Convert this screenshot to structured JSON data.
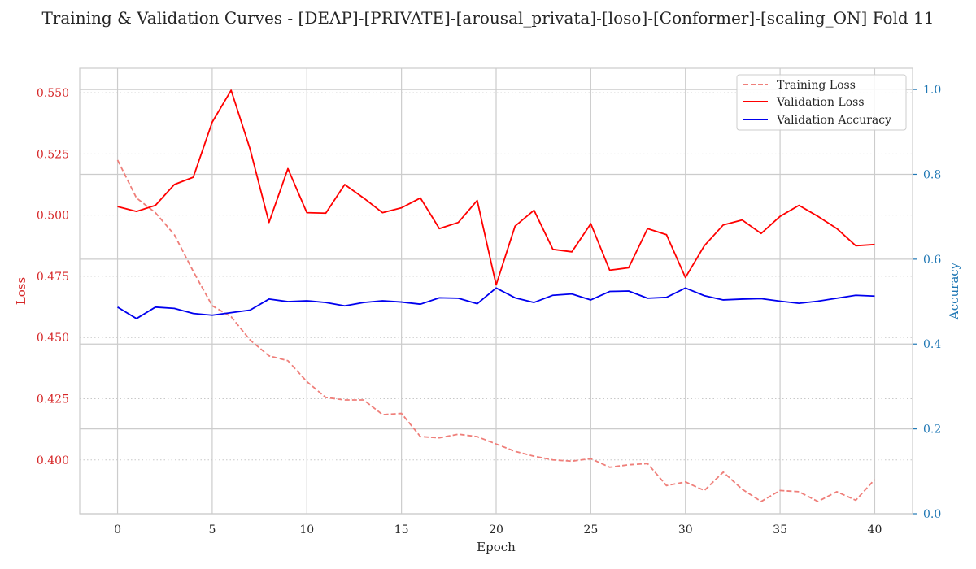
{
  "title": "Training & Validation Curves - [DEAP]-[PRIVATE]-[arousal_privata]-[loso]-[Conformer]-[scaling_ON] Fold 11",
  "colors": {
    "training_loss": "#ef7f7a",
    "validation_loss": "#ff0000",
    "validation_accuracy": "#0000ee",
    "loss_axis": "#d62728",
    "accuracy_axis": "#1f77b4"
  },
  "chart_data": {
    "type": "line",
    "title": "Training & Validation Curves - [DEAP]-[PRIVATE]-[arousal_privata]-[loso]-[Conformer]-[scaling_ON] Fold 11",
    "xlabel": "Epoch",
    "ylabel_left": "Loss",
    "ylabel_right": "Accuracy",
    "xlim": [
      -2,
      42
    ],
    "ylim_left": [
      0.378,
      0.56
    ],
    "ylim_right": [
      0.0,
      1.05
    ],
    "xticks": [
      0,
      5,
      10,
      15,
      20,
      25,
      30,
      35,
      40
    ],
    "yticks_left": [
      0.4,
      0.425,
      0.45,
      0.475,
      0.5,
      0.525,
      0.55
    ],
    "yticks_left_labels": [
      "0.400",
      "0.425",
      "0.450",
      "0.475",
      "0.500",
      "0.525",
      "0.550"
    ],
    "yticks_right": [
      0.0,
      0.2,
      0.4,
      0.6,
      0.8,
      1.0
    ],
    "yticks_right_labels": [
      "0.0",
      "0.2",
      "0.4",
      "0.6",
      "0.8",
      "1.0"
    ],
    "grid": true,
    "legend_position": "top-right",
    "x": [
      0,
      1,
      2,
      3,
      4,
      5,
      6,
      7,
      8,
      9,
      10,
      11,
      12,
      13,
      14,
      15,
      16,
      17,
      18,
      19,
      20,
      21,
      22,
      23,
      24,
      25,
      26,
      27,
      28,
      29,
      30,
      31,
      32,
      33,
      34,
      35,
      36,
      37,
      38,
      39,
      40
    ],
    "series": [
      {
        "name": "Training Loss",
        "axis": "left",
        "style": "dashed",
        "color": "#ef7f7a",
        "values": [
          0.5225,
          0.507,
          0.501,
          0.492,
          0.477,
          0.463,
          0.4585,
          0.449,
          0.4425,
          0.4405,
          0.432,
          0.4255,
          0.4245,
          0.4245,
          0.4185,
          0.419,
          0.4095,
          0.409,
          0.4105,
          0.4095,
          0.4065,
          0.4035,
          0.4015,
          0.4,
          0.3995,
          0.4005,
          0.397,
          0.398,
          0.3985,
          0.3895,
          0.391,
          0.3875,
          0.395,
          0.388,
          0.383,
          0.3875,
          0.387,
          0.383,
          0.387,
          0.3835,
          0.392
        ]
      },
      {
        "name": "Validation Loss",
        "axis": "left",
        "style": "solid",
        "color": "#ff0000",
        "values": [
          0.5035,
          0.5015,
          0.504,
          0.5125,
          0.5155,
          0.538,
          0.551,
          0.527,
          0.497,
          0.519,
          0.501,
          0.5008,
          0.5125,
          0.507,
          0.501,
          0.503,
          0.507,
          0.4945,
          0.497,
          0.506,
          0.4715,
          0.4955,
          0.502,
          0.486,
          0.485,
          0.4965,
          0.4775,
          0.4785,
          0.4945,
          0.492,
          0.4745,
          0.4875,
          0.496,
          0.498,
          0.4925,
          0.4995,
          0.504,
          0.4995,
          0.4945,
          0.4875,
          0.488
        ]
      },
      {
        "name": "Validation Accuracy",
        "axis": "right",
        "style": "solid",
        "color": "#0000ee",
        "values": [
          0.487,
          0.46,
          0.487,
          0.484,
          0.472,
          0.468,
          0.474,
          0.48,
          0.506,
          0.5,
          0.502,
          0.498,
          0.49,
          0.498,
          0.502,
          0.499,
          0.494,
          0.509,
          0.508,
          0.495,
          0.532,
          0.509,
          0.498,
          0.515,
          0.518,
          0.504,
          0.524,
          0.525,
          0.508,
          0.51,
          0.532,
          0.514,
          0.504,
          0.506,
          0.507,
          0.501,
          0.496,
          0.501,
          0.508,
          0.515,
          0.513
        ]
      }
    ]
  }
}
